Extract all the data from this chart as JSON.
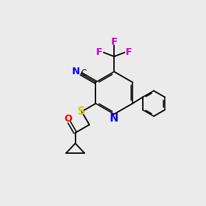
{
  "background_color": "#ebebeb",
  "atom_colors": {
    "N_pyridine": "#0000ee",
    "N_nitrile": "#0000ee",
    "S": "#cccc00",
    "O": "#ff0000",
    "F": "#cc00cc",
    "C": "#000000"
  },
  "figsize": [
    3.0,
    3.0
  ],
  "dpi": 100,
  "lw": 1.4,
  "lw2": 1.2
}
